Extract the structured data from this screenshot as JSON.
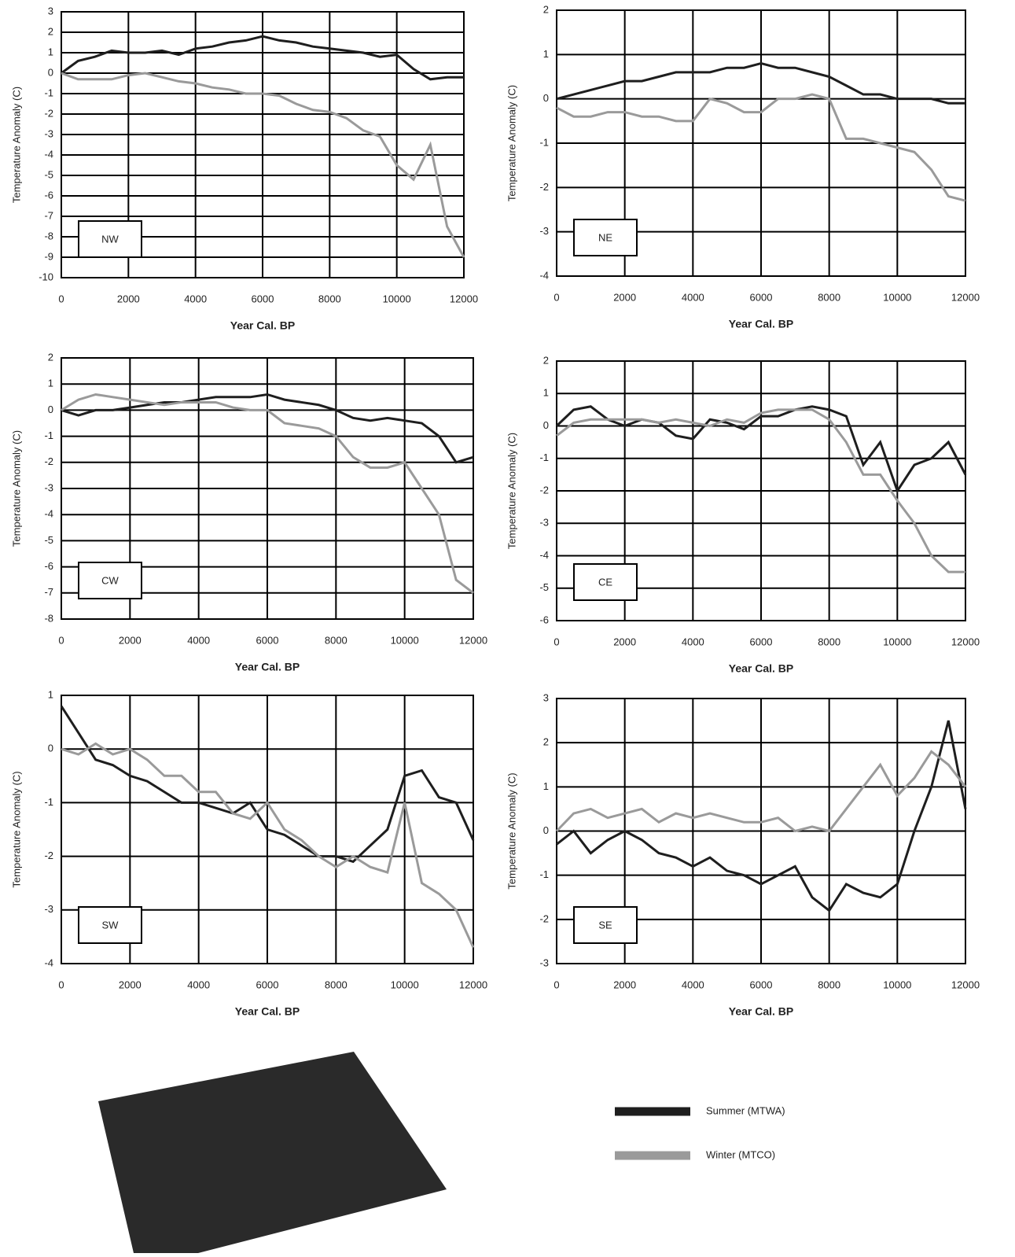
{
  "chart_data": [
    {
      "type": "line",
      "title": "NW",
      "ylabel": "Temperature Anomaly (C)",
      "xlabel": "Year Cal. BP",
      "x": [
        0,
        500,
        1000,
        1500,
        2000,
        2500,
        3000,
        3500,
        4000,
        4500,
        5000,
        5500,
        6000,
        6500,
        7000,
        7500,
        8000,
        8500,
        9000,
        9500,
        10000,
        10500,
        11000,
        11500,
        12000
      ],
      "series": [
        {
          "color": "#1e1e1e",
          "values": [
            0,
            0.6,
            0.8,
            1.1,
            1.0,
            1.0,
            1.1,
            0.9,
            1.2,
            1.3,
            1.5,
            1.6,
            1.8,
            1.6,
            1.5,
            1.3,
            1.2,
            1.1,
            1.0,
            0.8,
            0.9,
            0.2,
            -0.3,
            -0.2,
            -0.2
          ]
        },
        {
          "color": "#9a9a9a",
          "values": [
            0,
            -0.3,
            -0.3,
            -0.3,
            -0.1,
            0,
            -0.2,
            -0.4,
            -0.5,
            -0.7,
            -0.8,
            -1.0,
            -1.0,
            -1.1,
            -1.5,
            -1.8,
            -1.9,
            -2.2,
            -2.8,
            -3.1,
            -4.5,
            -5.2,
            -3.5,
            -7.5,
            -9.0
          ]
        }
      ],
      "xlim": [
        0,
        12000
      ],
      "xticks": [
        0,
        2000,
        4000,
        6000,
        8000,
        10000,
        12000
      ],
      "ylim": [
        -10,
        3
      ],
      "yticks": [
        -10,
        -9,
        -8,
        -7,
        -6,
        -5,
        -4,
        -3,
        -2,
        -1,
        0,
        1,
        2,
        3
      ],
      "grid": true
    },
    {
      "type": "line",
      "title": "NE",
      "ylabel": "Temperature Anomaly (C)",
      "xlabel": "Year Cal. BP",
      "x": [
        0,
        500,
        1000,
        1500,
        2000,
        2500,
        3000,
        3500,
        4000,
        4500,
        5000,
        5500,
        6000,
        6500,
        7000,
        7500,
        8000,
        8500,
        9000,
        9500,
        10000,
        10500,
        11000,
        11500,
        12000
      ],
      "series": [
        {
          "color": "#1e1e1e",
          "values": [
            0,
            0.1,
            0.2,
            0.3,
            0.4,
            0.4,
            0.5,
            0.6,
            0.6,
            0.6,
            0.7,
            0.7,
            0.8,
            0.7,
            0.7,
            0.6,
            0.5,
            0.3,
            0.1,
            0.1,
            0.0,
            0.0,
            0.0,
            -0.1,
            -0.1
          ]
        },
        {
          "color": "#9a9a9a",
          "values": [
            -0.2,
            -0.4,
            -0.4,
            -0.3,
            -0.3,
            -0.4,
            -0.4,
            -0.5,
            -0.5,
            0.0,
            -0.1,
            -0.3,
            -0.3,
            0.0,
            0.0,
            0.1,
            0.0,
            -0.9,
            -0.9,
            -1.0,
            -1.1,
            -1.2,
            -1.6,
            -2.2,
            -2.3
          ]
        }
      ],
      "xlim": [
        0,
        12000
      ],
      "xticks": [
        0,
        2000,
        4000,
        6000,
        8000,
        10000,
        12000
      ],
      "ylim": [
        -4,
        2
      ],
      "yticks": [
        -4,
        -3,
        -2,
        -1,
        0,
        1,
        2
      ],
      "grid": true
    },
    {
      "type": "line",
      "title": "CW",
      "ylabel": "Temperature Anomaly (C)",
      "xlabel": "Year Cal. BP",
      "x": [
        0,
        500,
        1000,
        1500,
        2000,
        2500,
        3000,
        3500,
        4000,
        4500,
        5000,
        5500,
        6000,
        6500,
        7000,
        7500,
        8000,
        8500,
        9000,
        9500,
        10000,
        10500,
        11000,
        11500,
        12000
      ],
      "series": [
        {
          "color": "#1e1e1e",
          "values": [
            0,
            -0.2,
            0,
            0,
            0.1,
            0.2,
            0.3,
            0.3,
            0.4,
            0.5,
            0.5,
            0.5,
            0.6,
            0.4,
            0.3,
            0.2,
            0,
            -0.3,
            -0.4,
            -0.3,
            -0.4,
            -0.5,
            -1.0,
            -2.0,
            -1.8
          ]
        },
        {
          "color": "#9a9a9a",
          "values": [
            0,
            0.4,
            0.6,
            0.5,
            0.4,
            0.3,
            0.2,
            0.3,
            0.3,
            0.3,
            0.1,
            0,
            0,
            -0.5,
            -0.6,
            -0.7,
            -1.0,
            -1.8,
            -2.2,
            -2.2,
            -2.0,
            -3.0,
            -4.0,
            -6.5,
            -7.0
          ]
        }
      ],
      "xlim": [
        0,
        12000
      ],
      "xticks": [
        0,
        2000,
        4000,
        6000,
        8000,
        10000,
        12000
      ],
      "ylim": [
        -8,
        2
      ],
      "yticks": [
        -8,
        -7,
        -6,
        -5,
        -4,
        -3,
        -2,
        -1,
        0,
        1,
        2
      ],
      "grid": true
    },
    {
      "type": "line",
      "title": "CE",
      "ylabel": "Temperature Anomaly (C)",
      "xlabel": "Year Cal. BP",
      "x": [
        0,
        500,
        1000,
        1500,
        2000,
        2500,
        3000,
        3500,
        4000,
        4500,
        5000,
        5500,
        6000,
        6500,
        7000,
        7500,
        8000,
        8500,
        9000,
        9500,
        10000,
        10500,
        11000,
        11500,
        12000
      ],
      "series": [
        {
          "color": "#1e1e1e",
          "values": [
            0,
            0.5,
            0.6,
            0.2,
            0,
            0.2,
            0.1,
            -0.3,
            -0.4,
            0.2,
            0.1,
            -0.1,
            0.3,
            0.3,
            0.5,
            0.6,
            0.5,
            0.3,
            -1.2,
            -0.5,
            -2.0,
            -1.2,
            -1.0,
            -0.5,
            -1.5
          ]
        },
        {
          "color": "#9a9a9a",
          "values": [
            -0.3,
            0.1,
            0.2,
            0.2,
            0.2,
            0.2,
            0.1,
            0.2,
            0.1,
            0,
            0.2,
            0.1,
            0.4,
            0.5,
            0.5,
            0.5,
            0.2,
            -0.5,
            -1.5,
            -1.5,
            -2.3,
            -3.0,
            -4.0,
            -4.5,
            -4.5
          ]
        }
      ],
      "xlim": [
        0,
        12000
      ],
      "xticks": [
        0,
        2000,
        4000,
        6000,
        8000,
        10000,
        12000
      ],
      "ylim": [
        -6,
        2
      ],
      "yticks": [
        -6,
        -5,
        -4,
        -3,
        -2,
        -1,
        0,
        1,
        2
      ],
      "grid": true
    },
    {
      "type": "line",
      "title": "SW",
      "ylabel": "Temperature Anomaly (C)",
      "xlabel": "Year Cal. BP",
      "x": [
        0,
        500,
        1000,
        1500,
        2000,
        2500,
        3000,
        3500,
        4000,
        4500,
        5000,
        5500,
        6000,
        6500,
        7000,
        7500,
        8000,
        8500,
        9000,
        9500,
        10000,
        10500,
        11000,
        11500,
        12000
      ],
      "series": [
        {
          "color": "#1e1e1e",
          "values": [
            0.8,
            0.3,
            -0.2,
            -0.3,
            -0.5,
            -0.6,
            -0.8,
            -1.0,
            -1.0,
            -1.1,
            -1.2,
            -1.0,
            -1.5,
            -1.6,
            -1.8,
            -2.0,
            -2.0,
            -2.1,
            -1.8,
            -1.5,
            -0.5,
            -0.4,
            -0.9,
            -1.0,
            -1.7
          ]
        },
        {
          "color": "#9a9a9a",
          "values": [
            0,
            -0.1,
            0.1,
            -0.1,
            0,
            -0.2,
            -0.5,
            -0.5,
            -0.8,
            -0.8,
            -1.2,
            -1.3,
            -1.0,
            -1.5,
            -1.7,
            -2.0,
            -2.2,
            -2.0,
            -2.2,
            -2.3,
            -1.0,
            -2.5,
            -2.7,
            -3.0,
            -3.7
          ]
        }
      ],
      "xlim": [
        0,
        12000
      ],
      "xticks": [
        0,
        2000,
        4000,
        6000,
        8000,
        10000,
        12000
      ],
      "ylim": [
        -4,
        1
      ],
      "yticks": [
        -4,
        -3,
        -2,
        -1,
        0,
        1
      ],
      "grid": true
    },
    {
      "type": "line",
      "title": "SE",
      "ylabel": "Temperature Anomaly (C)",
      "xlabel": "Year Cal. BP",
      "x": [
        0,
        500,
        1000,
        1500,
        2000,
        2500,
        3000,
        3500,
        4000,
        4500,
        5000,
        5500,
        6000,
        6500,
        7000,
        7500,
        8000,
        8500,
        9000,
        9500,
        10000,
        10500,
        11000,
        11500,
        12000
      ],
      "series": [
        {
          "color": "#1e1e1e",
          "values": [
            -0.3,
            0,
            -0.5,
            -0.2,
            0,
            -0.2,
            -0.5,
            -0.6,
            -0.8,
            -0.6,
            -0.9,
            -1.0,
            -1.2,
            -1.0,
            -0.8,
            -1.5,
            -1.8,
            -1.2,
            -1.4,
            -1.5,
            -1.2,
            0,
            1.0,
            2.5,
            0.5
          ]
        },
        {
          "color": "#9a9a9a",
          "values": [
            0,
            0.4,
            0.5,
            0.3,
            0.4,
            0.5,
            0.2,
            0.4,
            0.3,
            0.4,
            0.3,
            0.2,
            0.2,
            0.3,
            0.0,
            0.1,
            0,
            0.5,
            1.0,
            1.5,
            0.8,
            1.2,
            1.8,
            1.5,
            1.0
          ]
        }
      ],
      "xlim": [
        0,
        12000
      ],
      "xticks": [
        0,
        2000,
        4000,
        6000,
        8000,
        10000,
        12000
      ],
      "ylim": [
        -3,
        3
      ],
      "yticks": [
        -3,
        -2,
        -1,
        0,
        1,
        2,
        3
      ],
      "grid": true
    }
  ],
  "legend": {
    "entries": [
      "Summer (MTWA)",
      "Winter (MTCO)"
    ],
    "colors": [
      "#1e1e1e",
      "#9a9a9a"
    ]
  }
}
